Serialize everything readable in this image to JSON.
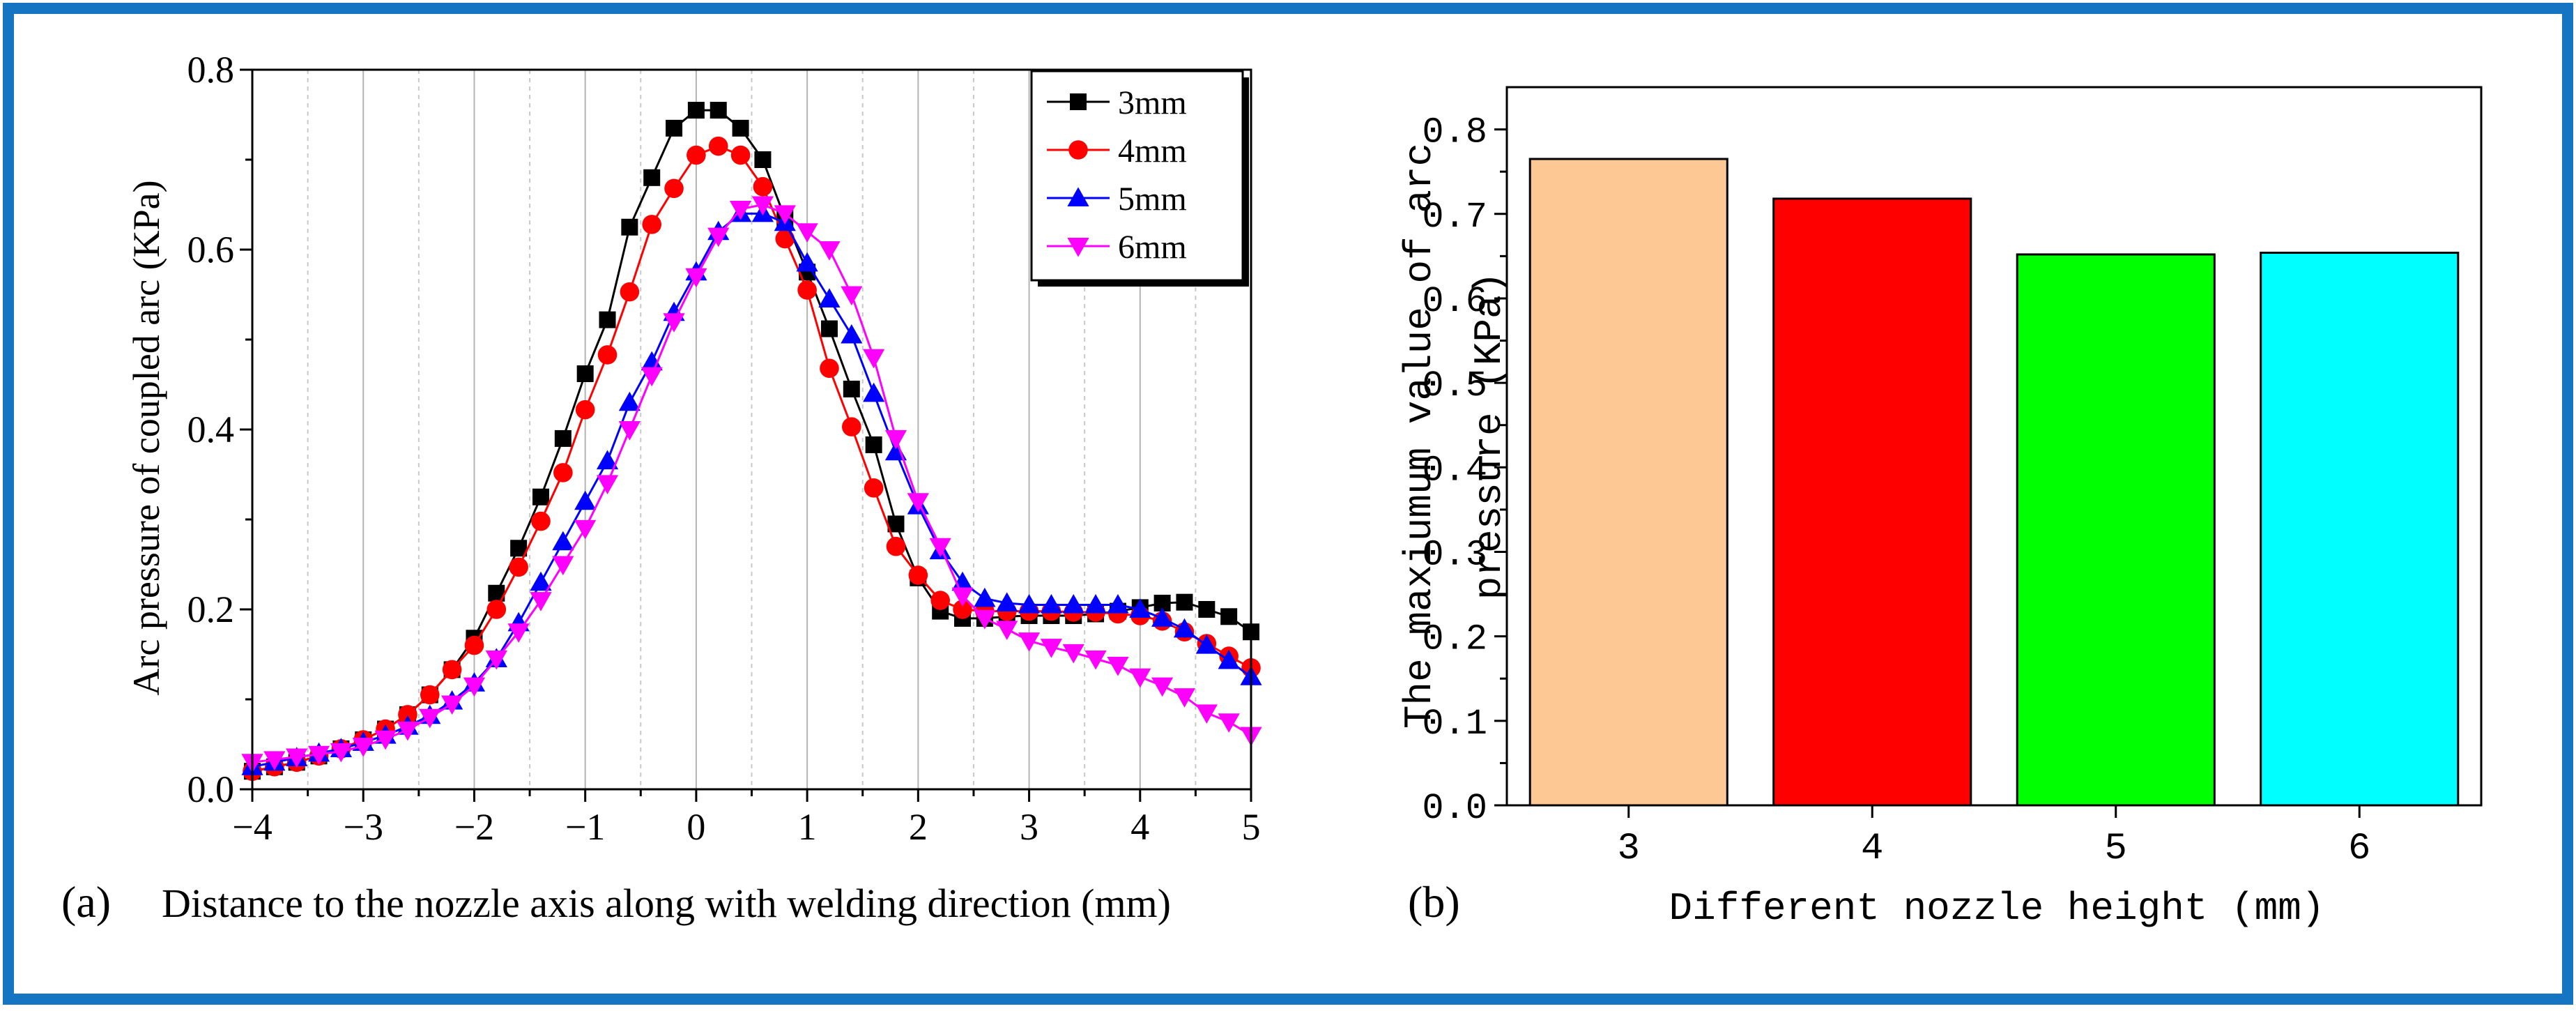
{
  "frame_color": "#1575c3",
  "chart_data": [
    {
      "type": "line",
      "panel_label": "(a)",
      "title": "",
      "xlabel": "Distance to the nozzle axis along with welding direction (mm)",
      "ylabel": "Arc pressure of coupled arc (KPa)",
      "xlim": [
        -4,
        5
      ],
      "ylim": [
        0.0,
        0.8
      ],
      "xticks": [
        -4,
        -3,
        -2,
        -1,
        0,
        1,
        2,
        3,
        4,
        5
      ],
      "xtick_labels": [
        "−4",
        "−3",
        "−2",
        "−1",
        "0",
        "1",
        "2",
        "3",
        "4",
        "5"
      ],
      "yticks": [
        0.0,
        0.2,
        0.4,
        0.6,
        0.8
      ],
      "ytick_labels": [
        "0.0",
        "0.2",
        "0.4",
        "0.6",
        "0.8"
      ],
      "grid": "vertical",
      "legend_position": "top-right",
      "series": [
        {
          "name": "3mm",
          "color": "#000000",
          "marker": "square",
          "x": [
            -4.0,
            -3.8,
            -3.6,
            -3.4,
            -3.2,
            -3.0,
            -2.8,
            -2.6,
            -2.4,
            -2.2,
            -2.0,
            -1.8,
            -1.6,
            -1.4,
            -1.2,
            -1.0,
            -0.8,
            -0.6,
            -0.4,
            -0.2,
            0.0,
            0.2,
            0.4,
            0.6,
            0.8,
            1.0,
            1.2,
            1.4,
            1.6,
            1.8,
            2.0,
            2.2,
            2.4,
            2.6,
            2.8,
            3.0,
            3.2,
            3.4,
            3.6,
            3.8,
            4.0,
            4.2,
            4.4,
            4.6,
            4.8,
            5.0
          ],
          "y": [
            0.02,
            0.025,
            0.03,
            0.037,
            0.045,
            0.055,
            0.067,
            0.083,
            0.105,
            0.133,
            0.168,
            0.218,
            0.268,
            0.325,
            0.39,
            0.462,
            0.522,
            0.625,
            0.68,
            0.735,
            0.755,
            0.755,
            0.735,
            0.7,
            0.635,
            0.575,
            0.512,
            0.445,
            0.383,
            0.295,
            0.235,
            0.198,
            0.19,
            0.19,
            0.192,
            0.193,
            0.193,
            0.193,
            0.195,
            0.198,
            0.202,
            0.207,
            0.208,
            0.2,
            0.192,
            0.175
          ]
        },
        {
          "name": "4mm",
          "color": "#ff0000",
          "marker": "circle",
          "x": [
            -4.0,
            -3.8,
            -3.6,
            -3.4,
            -3.2,
            -3.0,
            -2.8,
            -2.6,
            -2.4,
            -2.2,
            -2.0,
            -1.8,
            -1.6,
            -1.4,
            -1.2,
            -1.0,
            -0.8,
            -0.6,
            -0.4,
            -0.2,
            0.0,
            0.2,
            0.4,
            0.6,
            0.8,
            1.0,
            1.2,
            1.4,
            1.6,
            1.8,
            2.0,
            2.2,
            2.4,
            2.6,
            2.8,
            3.0,
            3.2,
            3.4,
            3.6,
            3.8,
            4.0,
            4.2,
            4.4,
            4.6,
            4.8,
            5.0
          ],
          "y": [
            0.02,
            0.025,
            0.03,
            0.037,
            0.045,
            0.055,
            0.067,
            0.083,
            0.105,
            0.133,
            0.16,
            0.2,
            0.247,
            0.298,
            0.352,
            0.422,
            0.483,
            0.553,
            0.628,
            0.668,
            0.705,
            0.715,
            0.705,
            0.67,
            0.612,
            0.555,
            0.468,
            0.403,
            0.335,
            0.27,
            0.238,
            0.21,
            0.2,
            0.198,
            0.198,
            0.198,
            0.198,
            0.197,
            0.197,
            0.195,
            0.193,
            0.187,
            0.175,
            0.162,
            0.148,
            0.135
          ]
        },
        {
          "name": "5mm",
          "color": "#0000ff",
          "marker": "triangle-up",
          "x": [
            -4.0,
            -3.8,
            -3.6,
            -3.4,
            -3.2,
            -3.0,
            -2.8,
            -2.6,
            -2.4,
            -2.2,
            -2.0,
            -1.8,
            -1.6,
            -1.4,
            -1.2,
            -1.0,
            -0.8,
            -0.6,
            -0.4,
            -0.2,
            0.0,
            0.2,
            0.4,
            0.6,
            0.8,
            1.0,
            1.2,
            1.4,
            1.6,
            1.8,
            2.0,
            2.2,
            2.4,
            2.6,
            2.8,
            3.0,
            3.2,
            3.4,
            3.6,
            3.8,
            4.0,
            4.2,
            4.4,
            4.6,
            4.8,
            5.0
          ],
          "y": [
            0.025,
            0.03,
            0.035,
            0.04,
            0.045,
            0.052,
            0.06,
            0.07,
            0.082,
            0.098,
            0.118,
            0.145,
            0.185,
            0.23,
            0.275,
            0.32,
            0.365,
            0.43,
            0.475,
            0.53,
            0.575,
            0.62,
            0.64,
            0.64,
            0.63,
            0.585,
            0.545,
            0.505,
            0.44,
            0.375,
            0.315,
            0.265,
            0.23,
            0.212,
            0.207,
            0.205,
            0.205,
            0.205,
            0.205,
            0.205,
            0.2,
            0.19,
            0.178,
            0.16,
            0.143,
            0.125
          ]
        },
        {
          "name": "6mm",
          "color": "#ff00ff",
          "marker": "triangle-down",
          "x": [
            -4.0,
            -3.8,
            -3.6,
            -3.4,
            -3.2,
            -3.0,
            -2.8,
            -2.6,
            -2.4,
            -2.2,
            -2.0,
            -1.8,
            -1.6,
            -1.4,
            -1.2,
            -1.0,
            -0.8,
            -0.6,
            -0.4,
            -0.2,
            0.0,
            0.2,
            0.4,
            0.6,
            0.8,
            1.0,
            1.2,
            1.4,
            1.6,
            1.8,
            2.0,
            2.2,
            2.4,
            2.6,
            2.8,
            3.0,
            3.2,
            3.4,
            3.6,
            3.8,
            4.0,
            4.2,
            4.4,
            4.6,
            4.8,
            5.0
          ],
          "y": [
            0.03,
            0.033,
            0.036,
            0.039,
            0.042,
            0.048,
            0.056,
            0.066,
            0.08,
            0.095,
            0.115,
            0.145,
            0.175,
            0.21,
            0.25,
            0.29,
            0.34,
            0.4,
            0.46,
            0.52,
            0.57,
            0.615,
            0.645,
            0.65,
            0.64,
            0.62,
            0.6,
            0.55,
            0.48,
            0.39,
            0.32,
            0.27,
            0.215,
            0.19,
            0.178,
            0.165,
            0.158,
            0.152,
            0.145,
            0.138,
            0.125,
            0.115,
            0.103,
            0.085,
            0.075,
            0.06
          ]
        }
      ]
    },
    {
      "type": "bar",
      "panel_label": "(b)",
      "title": "",
      "xlabel": "Different nozzle height (mm)",
      "ylabel_lines": [
        "The maxiumum value of arc",
        "pressure (KPa)"
      ],
      "categories": [
        "3",
        "4",
        "5",
        "6"
      ],
      "values": [
        0.765,
        0.718,
        0.652,
        0.654
      ],
      "bar_colors": [
        "#fec894",
        "#ff0000",
        "#00ff00",
        "#00ffff"
      ],
      "ylim": [
        0.0,
        0.85
      ],
      "yticks": [
        0.0,
        0.1,
        0.2,
        0.3,
        0.4,
        0.5,
        0.6,
        0.7,
        0.8
      ],
      "ytick_labels": [
        "0.0",
        "0.1",
        "0.2",
        "0.3",
        "0.4",
        "0.5",
        "0.6",
        "0.7",
        "0.8"
      ],
      "grid": "none"
    }
  ]
}
